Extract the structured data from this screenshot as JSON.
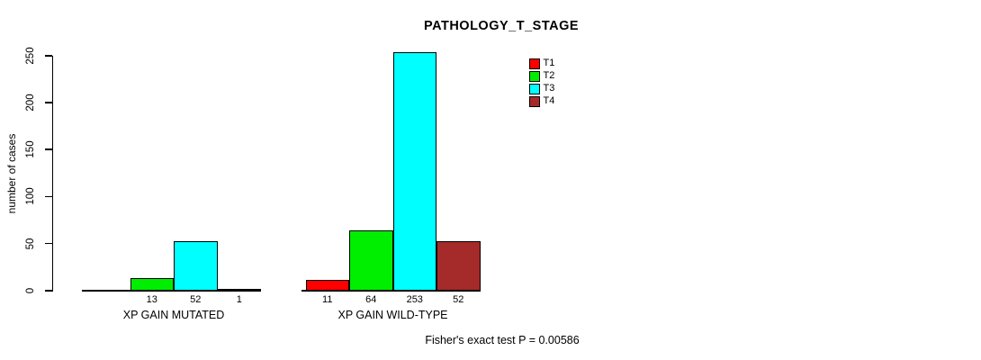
{
  "title": "PATHOLOGY_T_STAGE",
  "chart_data": {
    "type": "bar",
    "title": "PATHOLOGY_T_STAGE",
    "ylabel": "number of cases",
    "xlabel": "",
    "ylim": [
      0,
      250
    ],
    "yticks": [
      "0",
      "50",
      "100",
      "150",
      "200",
      "250"
    ],
    "grid": false,
    "legend_position": "top-right",
    "categories": [
      "XP GAIN MUTATED",
      "XP GAIN WILD-TYPE"
    ],
    "series": [
      {
        "name": "T1",
        "color": "#FF0000",
        "values": [
          0,
          11
        ]
      },
      {
        "name": "T2",
        "color": "#00EE00",
        "values": [
          13,
          64
        ]
      },
      {
        "name": "T3",
        "color": "#00FFFF",
        "values": [
          52,
          253
        ]
      },
      {
        "name": "T4",
        "color": "#A52A2A",
        "values": [
          1,
          52
        ]
      }
    ],
    "value_labels": [
      [
        null,
        "13",
        "52",
        "1"
      ],
      [
        "11",
        "64",
        "253",
        "52"
      ]
    ],
    "footnote": "Fisher's exact test P = 0.00586"
  }
}
